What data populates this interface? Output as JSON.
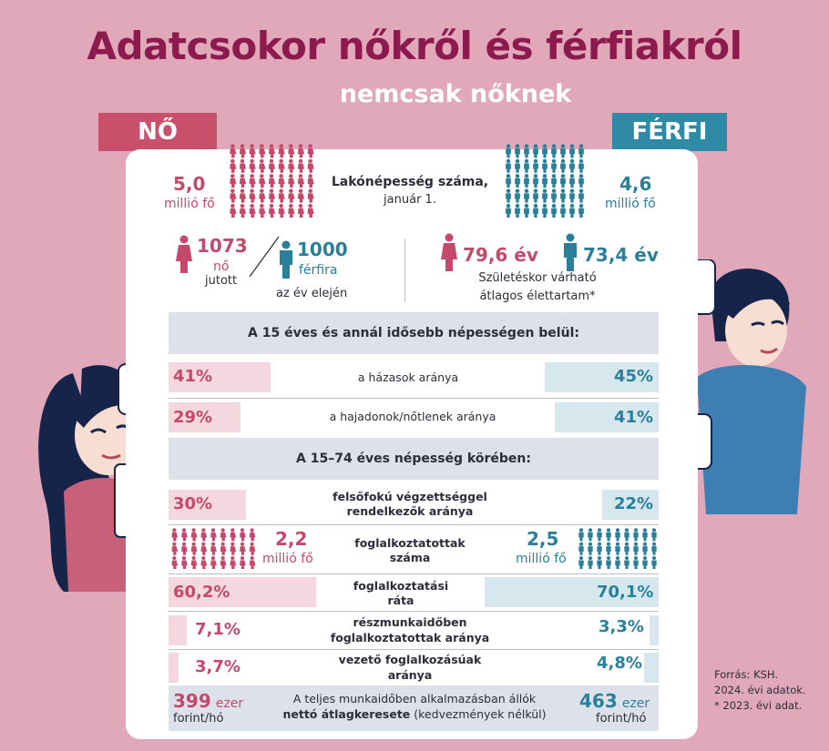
{
  "title": "Adatcsokor nőkről és férfiakról",
  "subtitle": "nemcsak nőknek",
  "labels": {
    "female": "NŐ",
    "male": "FÉRFI"
  },
  "colors": {
    "female": "#c4496a",
    "male": "#2a7f9b",
    "title": "#8c1a4e",
    "background": "#e0a8b8"
  },
  "population": {
    "female_value": "5,0",
    "female_unit": "millió fő",
    "male_value": "4,6",
    "male_unit": "millió fő",
    "label": "Lakónépesség száma,",
    "sublabel": "január 1."
  },
  "ratio": {
    "female_value": "1073",
    "female_word": "nő",
    "jutott": "jutott",
    "male_value": "1000",
    "male_word": "férfira",
    "note": "az év elején"
  },
  "life": {
    "female_value": "79,6 év",
    "male_value": "73,4 év",
    "label_line1": "Születéskor várható",
    "label_line2": "átlagos élettartam*"
  },
  "section1": "A 15 éves és annál idősebb népességen belül:",
  "section2": "A 15–74 éves népesség körében:",
  "rows1": [
    {
      "female": "41%",
      "label": "a házasok aránya",
      "male": "45%",
      "female_pct": 41,
      "male_pct": 45
    },
    {
      "female": "29%",
      "label": "a hajadonok/nőtlenek aránya",
      "male": "41%",
      "female_pct": 29,
      "male_pct": 41
    }
  ],
  "higher_ed": {
    "female": "30%",
    "label1": "felsőfokú végzettséggel",
    "label2": "rendelkezők aránya",
    "male": "22%",
    "female_pct": 30,
    "male_pct": 22
  },
  "employed": {
    "female_value": "2,2",
    "female_unit": "millió fő",
    "label1": "foglalkoztatottak",
    "label2": "száma",
    "male_value": "2,5",
    "male_unit": "millió fő"
  },
  "employment_rate": {
    "female": "60,2%",
    "label1": "foglalkoztatási",
    "label2": "ráta",
    "male": "70,1%",
    "female_pct": 60.2,
    "male_pct": 70.1
  },
  "part_time": {
    "female": "7,1%",
    "label1": "részmunkaidőben",
    "label2": "foglalkoztatottak aránya",
    "male": "3,3%",
    "female_pct": 7.1,
    "male_pct": 3.3
  },
  "managers": {
    "female": "3,7%",
    "label1": "vezető foglalkozásúak",
    "label2": "aránya",
    "male": "4,8%",
    "female_pct": 3.7,
    "male_pct": 4.8
  },
  "earnings": {
    "female_value": "399",
    "female_unit": "ezer",
    "female_per": "forint/hó",
    "male_value": "463",
    "male_unit": "ezer",
    "male_per": "forint/hó",
    "label1": "A teljes munkaidőben alkalmazásban állók",
    "label2_bold": "nettó átlagkeresete",
    "label2_rest": " (kedvezmények nélkül)"
  },
  "source": {
    "line1": "Forrás: KSH.",
    "line2": "2024. évi adatok.",
    "line3": "* 2023. évi adat."
  },
  "icons": {
    "female": "female-person-icon",
    "male": "male-person-icon"
  }
}
